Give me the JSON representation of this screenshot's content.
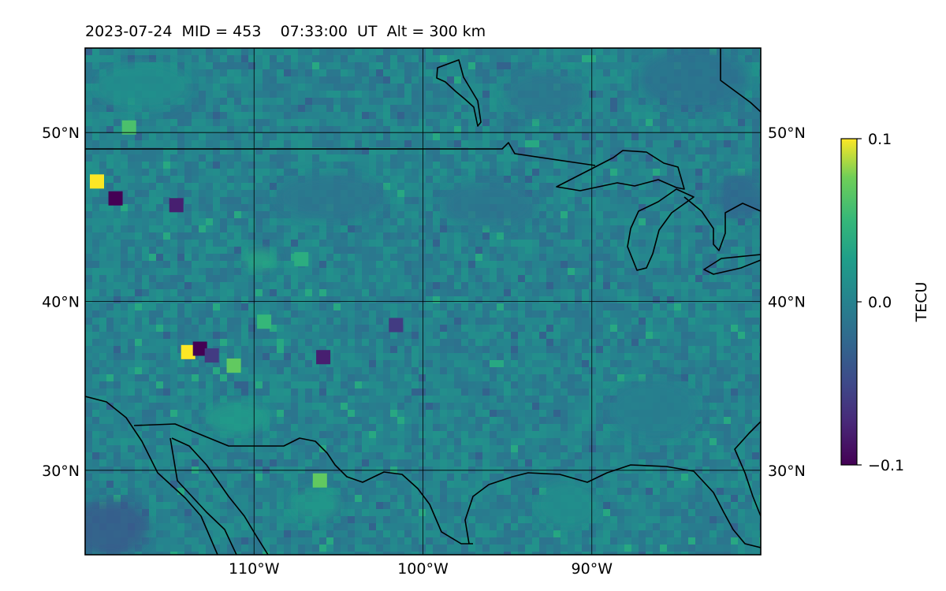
{
  "header": {
    "date": "2023-07-24",
    "mid_label": "MID = 453",
    "time": "07:33:00  UT",
    "alt_label": "Alt = 300 km"
  },
  "map": {
    "lon_range": [
      -120,
      -80
    ],
    "lat_range": [
      25,
      55
    ],
    "lat_ticks": [
      {
        "value": 50,
        "label": "50°N"
      },
      {
        "value": 40,
        "label": "40°N"
      },
      {
        "value": 30,
        "label": "30°N"
      }
    ],
    "lon_ticks": [
      {
        "value": -110,
        "label": "110°W"
      },
      {
        "value": -100,
        "label": "100°W"
      },
      {
        "value": -90,
        "label": "90°W"
      }
    ],
    "gridlines": true,
    "field": "detrended TEC perturbation",
    "anomalies": [
      {
        "lon": -119.3,
        "lat": 47.1,
        "value": 0.1
      },
      {
        "lon": -118.2,
        "lat": 46.1,
        "value": -0.1
      },
      {
        "lon": -114.6,
        "lat": 45.7,
        "value": -0.08
      },
      {
        "lon": -117.4,
        "lat": 50.3,
        "value": 0.06
      },
      {
        "lon": -113.9,
        "lat": 37.0,
        "value": 0.1
      },
      {
        "lon": -113.2,
        "lat": 37.2,
        "value": -0.1
      },
      {
        "lon": -112.5,
        "lat": 36.8,
        "value": -0.06
      },
      {
        "lon": -111.2,
        "lat": 36.2,
        "value": 0.07
      },
      {
        "lon": -105.9,
        "lat": 36.7,
        "value": -0.08
      },
      {
        "lon": -106.1,
        "lat": 29.4,
        "value": 0.07
      },
      {
        "lon": -107.2,
        "lat": 42.5,
        "value": 0.04
      },
      {
        "lon": -101.6,
        "lat": 38.6,
        "value": -0.06
      },
      {
        "lon": -109.4,
        "lat": 38.8,
        "value": 0.05
      }
    ]
  },
  "colorbar": {
    "label": "TECU",
    "colormap": "viridis",
    "min": -0.1,
    "max": 0.1,
    "ticks": [
      {
        "value": 0.1,
        "label": "0.1"
      },
      {
        "value": 0.0,
        "label": "0.0"
      },
      {
        "value": -0.1,
        "label": "−0.1"
      }
    ]
  }
}
